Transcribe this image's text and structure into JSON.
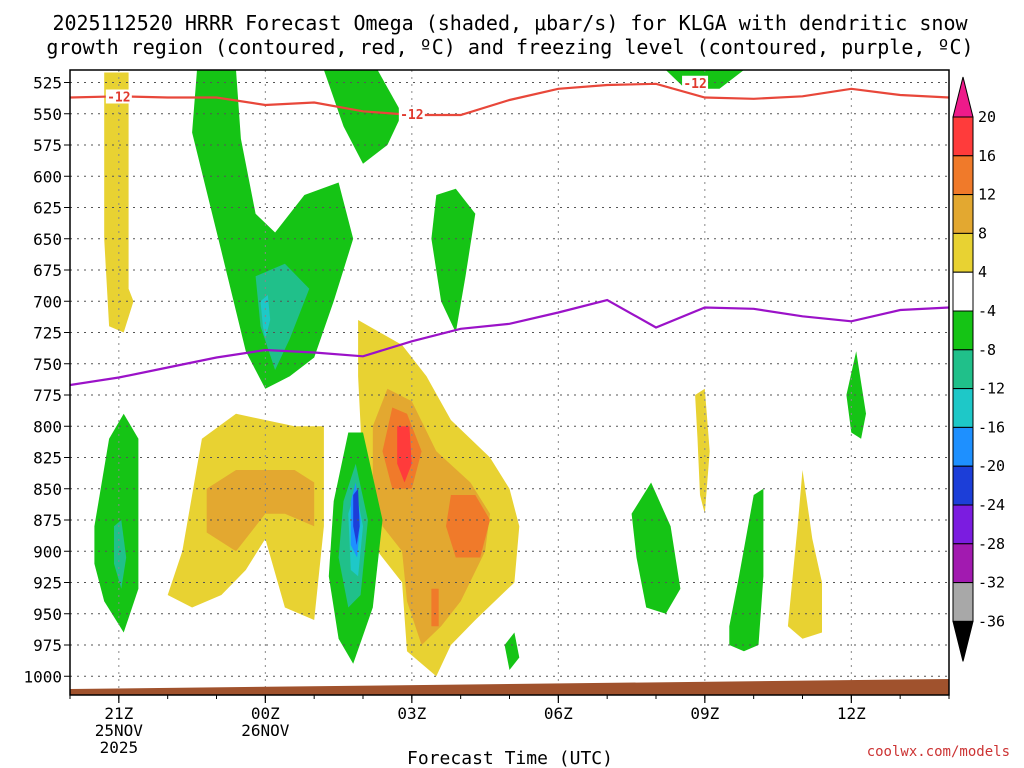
{
  "chart_data": {
    "type": "heatmap",
    "title_line1": "2025112520 HRRR Forecast Omega (shaded, μbar/s) for KLGA with dendritic snow",
    "title_line2": "growth region (contoured, red, ºC) and freezing level (contoured, purple, ºC)",
    "xlabel": "Forecast Time (UTC)",
    "credit": "coolwx.com/models",
    "x_hours_range": [
      -1,
      17
    ],
    "y_pressure_range": [
      1015,
      515
    ],
    "y_ticks": [
      "525",
      "550",
      "575",
      "600",
      "625",
      "650",
      "675",
      "700",
      "725",
      "750",
      "775",
      "800",
      "825",
      "850",
      "875",
      "900",
      "925",
      "950",
      "975",
      "1000"
    ],
    "x_ticks": [
      {
        "hour": 0,
        "l1": "21Z",
        "l2": "25NOV",
        "l3": "2025"
      },
      {
        "hour": 3,
        "l1": "00Z",
        "l2": "26NOV",
        "l3": ""
      },
      {
        "hour": 6,
        "l1": "03Z",
        "l2": "",
        "l3": ""
      },
      {
        "hour": 9,
        "l1": "06Z",
        "l2": "",
        "l3": ""
      },
      {
        "hour": 12,
        "l1": "09Z",
        "l2": "",
        "l3": ""
      },
      {
        "hour": 15,
        "l1": "12Z",
        "l2": "",
        "l3": ""
      }
    ],
    "colorbar": {
      "labels": [
        "20",
        "16",
        "12",
        "8",
        "4",
        "-4",
        "-8",
        "-12",
        "-16",
        "-20",
        "-24",
        "-28",
        "-32",
        "-36"
      ],
      "colors": [
        "#ff3b3b",
        "#f07a2a",
        "#e3a830",
        "#e8d232",
        "#ffffff",
        "#15c415",
        "#20c08a",
        "#1ec8c8",
        "#1e90ff",
        "#1c3ed8",
        "#7b1ce0",
        "#a21ab0",
        "#a8a8a8"
      ]
    },
    "dgz_contour_label": "-12",
    "dgz_line": [
      [
        -1,
        537
      ],
      [
        0,
        536
      ],
      [
        1,
        537
      ],
      [
        2,
        537
      ],
      [
        3,
        543
      ],
      [
        4,
        541
      ],
      [
        5,
        548
      ],
      [
        6,
        551
      ],
      [
        7,
        551
      ],
      [
        8,
        539
      ],
      [
        9,
        530
      ],
      [
        10,
        527
      ],
      [
        11,
        526
      ],
      [
        12,
        537
      ],
      [
        13,
        538
      ],
      [
        14,
        536
      ],
      [
        15,
        530
      ],
      [
        16,
        535
      ],
      [
        17,
        537
      ]
    ],
    "freezing_line": [
      [
        -1,
        767
      ],
      [
        0,
        761
      ],
      [
        1,
        753
      ],
      [
        2,
        745
      ],
      [
        3,
        739
      ],
      [
        4,
        741
      ],
      [
        5,
        744
      ],
      [
        6,
        732
      ],
      [
        7,
        722
      ],
      [
        8,
        718
      ],
      [
        9,
        709
      ],
      [
        10,
        699
      ],
      [
        11,
        721
      ],
      [
        12,
        705
      ],
      [
        13,
        706
      ],
      [
        14,
        712
      ],
      [
        15,
        716
      ],
      [
        16,
        707
      ],
      [
        17,
        705
      ]
    ],
    "omega_regions": [
      {
        "value": 4,
        "color": "#e8d232",
        "pts": [
          [
            -0.3,
            517
          ],
          [
            0.2,
            517
          ],
          [
            0.2,
            690
          ],
          [
            0.3,
            700
          ],
          [
            0.1,
            725
          ],
          [
            -0.2,
            720
          ],
          [
            -0.3,
            650
          ]
        ]
      },
      {
        "value": -4,
        "color": "#15c415",
        "pts": [
          [
            1.6,
            515
          ],
          [
            2.4,
            515
          ],
          [
            2.5,
            570
          ],
          [
            2.8,
            630
          ],
          [
            3.2,
            645
          ],
          [
            3.8,
            615
          ],
          [
            4.5,
            605
          ],
          [
            4.8,
            650
          ],
          [
            4.4,
            700
          ],
          [
            4.0,
            745
          ],
          [
            3.5,
            760
          ],
          [
            3.0,
            770
          ],
          [
            2.6,
            740
          ],
          [
            2.1,
            660
          ],
          [
            1.5,
            565
          ]
        ]
      },
      {
        "value": -8,
        "color": "#20c08a",
        "pts": [
          [
            2.8,
            680
          ],
          [
            3.4,
            670
          ],
          [
            3.9,
            690
          ],
          [
            3.5,
            730
          ],
          [
            3.2,
            755
          ],
          [
            2.9,
            720
          ]
        ]
      },
      {
        "value": -12,
        "color": "#1ec8c8",
        "pts": [
          [
            2.9,
            700
          ],
          [
            3.05,
            695
          ],
          [
            3.1,
            715
          ],
          [
            3.0,
            730
          ],
          [
            2.95,
            720
          ]
        ]
      },
      {
        "value": -4,
        "color": "#15c415",
        "pts": [
          [
            4.2,
            515
          ],
          [
            5.3,
            515
          ],
          [
            5.8,
            550
          ],
          [
            5.5,
            575
          ],
          [
            5.0,
            590
          ],
          [
            4.6,
            560
          ]
        ]
      },
      {
        "value": -4,
        "color": "#15c415",
        "pts": [
          [
            6.5,
            615
          ],
          [
            6.9,
            610
          ],
          [
            7.3,
            630
          ],
          [
            7.1,
            680
          ],
          [
            6.9,
            725
          ],
          [
            6.6,
            700
          ],
          [
            6.4,
            650
          ]
        ]
      },
      {
        "value": -4,
        "color": "#15c415",
        "pts": [
          [
            11.2,
            515
          ],
          [
            12.8,
            515
          ],
          [
            12.3,
            530
          ],
          [
            11.6,
            530
          ]
        ]
      },
      {
        "value": 4,
        "color": "#e8d232",
        "pts": [
          [
            4.9,
            715
          ],
          [
            5.8,
            735
          ],
          [
            6.3,
            760
          ],
          [
            6.8,
            795
          ],
          [
            7.6,
            825
          ],
          [
            8.0,
            850
          ],
          [
            8.2,
            880
          ],
          [
            8.1,
            925
          ],
          [
            7.3,
            955
          ],
          [
            6.8,
            975
          ],
          [
            6.5,
            1000
          ],
          [
            5.9,
            980
          ],
          [
            5.8,
            925
          ],
          [
            5.3,
            900
          ],
          [
            5.0,
            860
          ],
          [
            4.95,
            800
          ],
          [
            4.9,
            760
          ]
        ]
      },
      {
        "value": 8,
        "color": "#e3a830",
        "pts": [
          [
            5.5,
            770
          ],
          [
            6.0,
            780
          ],
          [
            6.5,
            820
          ],
          [
            7.2,
            845
          ],
          [
            7.6,
            870
          ],
          [
            7.5,
            900
          ],
          [
            7.0,
            940
          ],
          [
            6.6,
            960
          ],
          [
            6.2,
            975
          ],
          [
            5.9,
            940
          ],
          [
            5.8,
            900
          ],
          [
            5.4,
            880
          ],
          [
            5.2,
            840
          ],
          [
            5.2,
            800
          ]
        ]
      },
      {
        "value": 12,
        "color": "#f07a2a",
        "pts": [
          [
            5.6,
            785
          ],
          [
            5.9,
            790
          ],
          [
            6.2,
            820
          ],
          [
            6.0,
            850
          ],
          [
            5.6,
            850
          ],
          [
            5.4,
            820
          ]
        ]
      },
      {
        "value": 12,
        "color": "#f07a2a",
        "pts": [
          [
            6.8,
            855
          ],
          [
            7.3,
            855
          ],
          [
            7.6,
            875
          ],
          [
            7.4,
            905
          ],
          [
            6.9,
            905
          ],
          [
            6.7,
            880
          ]
        ]
      },
      {
        "value": 12,
        "color": "#f07a2a",
        "pts": [
          [
            6.4,
            930
          ],
          [
            6.55,
            930
          ],
          [
            6.55,
            960
          ],
          [
            6.4,
            960
          ]
        ]
      },
      {
        "value": 16,
        "color": "#ff3b3b",
        "pts": [
          [
            5.7,
            800
          ],
          [
            5.95,
            800
          ],
          [
            6.0,
            830
          ],
          [
            5.85,
            845
          ],
          [
            5.7,
            830
          ]
        ]
      },
      {
        "value": 4,
        "color": "#e8d232",
        "pts": [
          [
            1.0,
            935
          ],
          [
            1.3,
            900
          ],
          [
            1.7,
            810
          ],
          [
            2.4,
            790
          ],
          [
            3.6,
            800
          ],
          [
            4.2,
            800
          ],
          [
            4.2,
            880
          ],
          [
            4.0,
            955
          ],
          [
            3.4,
            945
          ],
          [
            3.0,
            890
          ],
          [
            2.6,
            915
          ],
          [
            2.1,
            935
          ],
          [
            1.5,
            945
          ]
        ]
      },
      {
        "value": 8,
        "color": "#e3a830",
        "pts": [
          [
            1.8,
            850
          ],
          [
            2.4,
            835
          ],
          [
            3.6,
            835
          ],
          [
            4.0,
            845
          ],
          [
            4.0,
            880
          ],
          [
            3.4,
            870
          ],
          [
            3.0,
            870
          ],
          [
            2.4,
            900
          ],
          [
            1.8,
            885
          ]
        ]
      },
      {
        "value": -4,
        "color": "#15c415",
        "pts": [
          [
            -0.5,
            880
          ],
          [
            -0.2,
            810
          ],
          [
            0.1,
            790
          ],
          [
            0.4,
            810
          ],
          [
            0.4,
            930
          ],
          [
            0.1,
            965
          ],
          [
            -0.3,
            940
          ],
          [
            -0.5,
            910
          ]
        ]
      },
      {
        "value": -8,
        "color": "#20c08a",
        "pts": [
          [
            -0.1,
            880
          ],
          [
            0.05,
            875
          ],
          [
            0.15,
            905
          ],
          [
            0.05,
            930
          ],
          [
            -0.1,
            910
          ]
        ]
      },
      {
        "value": -4,
        "color": "#15c415",
        "pts": [
          [
            4.4,
            860
          ],
          [
            4.7,
            805
          ],
          [
            5.0,
            805
          ],
          [
            5.4,
            875
          ],
          [
            5.2,
            945
          ],
          [
            4.8,
            990
          ],
          [
            4.5,
            970
          ],
          [
            4.3,
            920
          ]
        ]
      },
      {
        "value": -8,
        "color": "#20c08a",
        "pts": [
          [
            4.6,
            860
          ],
          [
            4.85,
            830
          ],
          [
            5.1,
            875
          ],
          [
            4.95,
            935
          ],
          [
            4.7,
            945
          ],
          [
            4.5,
            905
          ]
        ]
      },
      {
        "value": -12,
        "color": "#1ec8c8",
        "pts": [
          [
            4.7,
            870
          ],
          [
            4.85,
            850
          ],
          [
            5.0,
            880
          ],
          [
            4.9,
            920
          ],
          [
            4.75,
            915
          ]
        ]
      },
      {
        "value": -16,
        "color": "#1e90ff",
        "pts": [
          [
            4.75,
            860
          ],
          [
            4.85,
            845
          ],
          [
            4.95,
            875
          ],
          [
            4.88,
            905
          ],
          [
            4.75,
            895
          ]
        ]
      },
      {
        "value": -20,
        "color": "#1c3ed8",
        "pts": [
          [
            4.8,
            855
          ],
          [
            4.9,
            850
          ],
          [
            4.93,
            880
          ],
          [
            4.87,
            895
          ],
          [
            4.8,
            880
          ]
        ]
      },
      {
        "value": -4,
        "color": "#15c415",
        "pts": [
          [
            7.9,
            975
          ],
          [
            8.1,
            965
          ],
          [
            8.2,
            985
          ],
          [
            8.0,
            995
          ]
        ]
      },
      {
        "value": -4,
        "color": "#15c415",
        "pts": [
          [
            10.5,
            870
          ],
          [
            10.9,
            845
          ],
          [
            11.3,
            880
          ],
          [
            11.5,
            930
          ],
          [
            11.2,
            950
          ],
          [
            10.8,
            945
          ],
          [
            10.6,
            905
          ]
        ]
      },
      {
        "value": -4,
        "color": "#15c415",
        "pts": [
          [
            12.5,
            960
          ],
          [
            12.7,
            920
          ],
          [
            13.0,
            855
          ],
          [
            13.2,
            850
          ],
          [
            13.2,
            920
          ],
          [
            13.1,
            975
          ],
          [
            12.8,
            980
          ],
          [
            12.5,
            975
          ]
        ]
      },
      {
        "value": 4,
        "color": "#e8d232",
        "pts": [
          [
            13.8,
            920
          ],
          [
            13.9,
            880
          ],
          [
            14.0,
            835
          ],
          [
            14.2,
            890
          ],
          [
            14.4,
            925
          ],
          [
            14.4,
            965
          ],
          [
            14.0,
            970
          ],
          [
            13.7,
            960
          ]
        ]
      },
      {
        "value": 4,
        "color": "#e8d232",
        "pts": [
          [
            11.8,
            775
          ],
          [
            12.0,
            770
          ],
          [
            12.1,
            820
          ],
          [
            12.0,
            870
          ],
          [
            11.9,
            855
          ],
          [
            11.85,
            810
          ]
        ]
      },
      {
        "value": -4,
        "color": "#15c415",
        "pts": [
          [
            14.9,
            775
          ],
          [
            15.1,
            740
          ],
          [
            15.3,
            790
          ],
          [
            15.2,
            810
          ],
          [
            15.0,
            805
          ]
        ]
      }
    ]
  }
}
